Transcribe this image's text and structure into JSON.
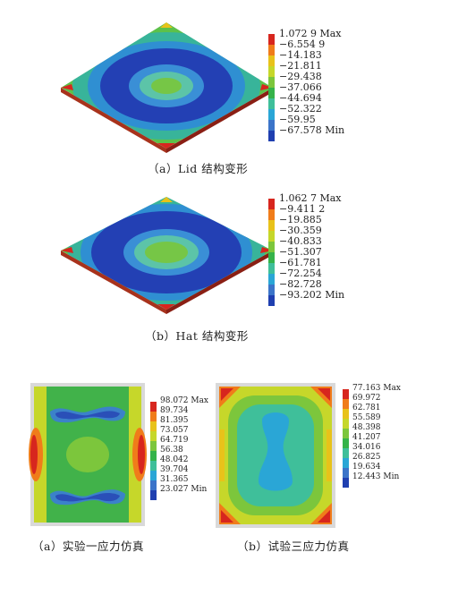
{
  "figure_a": {
    "caption": "（a）Lid 结构变形",
    "legend_values": [
      "1.072 9 Max",
      "−6.554 9",
      "−14.183",
      "−21.811",
      "−29.438",
      "−37.066",
      "−44.694",
      "−52.322",
      "−59.95",
      "−67.578 Min"
    ]
  },
  "figure_b": {
    "caption": "（b）Hat 结构变形",
    "legend_values": [
      "1.062 7 Max",
      "−9.411 2",
      "−19.885",
      "−30.359",
      "−40.833",
      "−51.307",
      "−61.781",
      "−72.254",
      "−82.728",
      "−93.202 Min"
    ]
  },
  "figure_c": {
    "caption": "（a）实验一应力仿真",
    "legend_values": [
      "98.072 Max",
      "89.734",
      "81.395",
      "73.057",
      "64.719",
      "56.38",
      "48.042",
      "39.704",
      "31.365",
      "23.027 Min"
    ]
  },
  "figure_d": {
    "caption": "（b）试验三应力仿真",
    "legend_values": [
      "77.163 Max",
      "69.972",
      "62.781",
      "55.589",
      "48.398",
      "41.207",
      "34.016",
      "26.825",
      "19.634",
      "12.443 Min"
    ]
  },
  "colors": {
    "scale": [
      "#d7261e",
      "#f07c1a",
      "#e8c21a",
      "#c6d72a",
      "#7cc63c",
      "#35b34a",
      "#3fbf9a",
      "#2aa6d6",
      "#3b74c9",
      "#1f3fb0"
    ]
  }
}
